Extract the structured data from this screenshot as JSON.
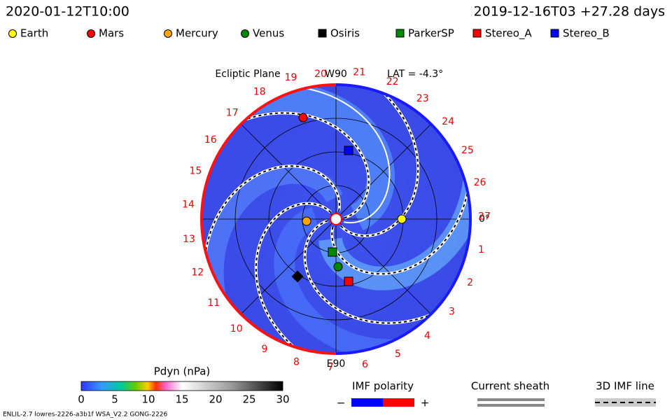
{
  "header": {
    "time": "2020-01-12T10:00",
    "run": "2019-12-16T03 +27.28 days"
  },
  "legend": [
    {
      "label": "Earth",
      "color": "#ffff00"
    },
    {
      "label": "Mars",
      "color": "#ff0000"
    },
    {
      "label": "Mercury",
      "color": "#ffa500"
    },
    {
      "label": "Venus",
      "color": "#008800"
    },
    {
      "label": "Osiris",
      "color": "#000000"
    },
    {
      "label": "ParkerSP",
      "color": "#008800"
    },
    {
      "label": "Stereo_A",
      "color": "#ff0000"
    },
    {
      "label": "Stereo_B",
      "color": "#0000ff"
    }
  ],
  "plot": {
    "title": "Ecliptic Plane",
    "top": "W90",
    "lat": "LAT = -4.3°",
    "right": "0°",
    "bottom": "E90",
    "top_left_number": "20",
    "carrington": [
      "1",
      "2",
      "3",
      "4",
      "5",
      "6",
      "7",
      "8",
      "9",
      "10",
      "11",
      "12",
      "13",
      "14",
      "15",
      "16",
      "17",
      "18",
      "19",
      "20",
      "21",
      "22",
      "23",
      "24",
      "25",
      "26",
      "27"
    ]
  },
  "colorbar": {
    "title": "Pdyn (nPa)",
    "ticks": [
      "0",
      "5",
      "10",
      "15",
      "20",
      "25",
      "30"
    ]
  },
  "imf": {
    "title": "IMF polarity",
    "minus": "−",
    "plus": "+"
  },
  "sheath": {
    "title": "Current sheath"
  },
  "imf_line": {
    "title": "3D IMF line"
  },
  "footer": "ENLIL-2.7 lowres-2226-a3b1f WSA_V2.2 GONG-2226"
}
